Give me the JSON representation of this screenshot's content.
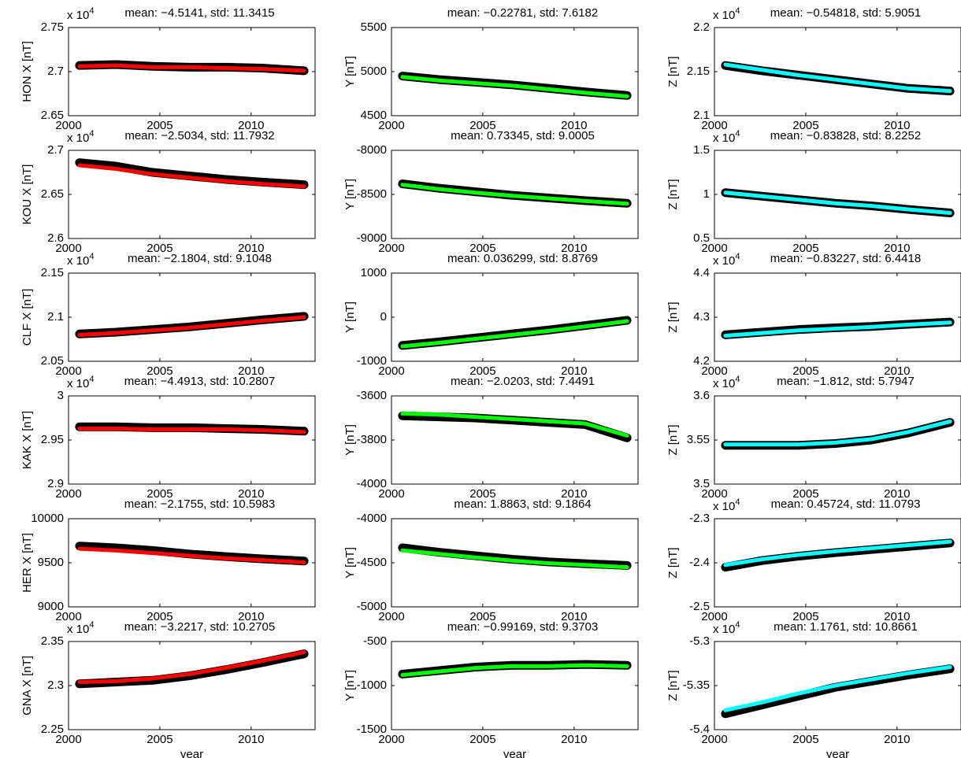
{
  "chart_data": [
    {
      "type": "line",
      "title": "mean: −4.5141, std: 11.3415",
      "ymult": {
        "base": "x 10",
        "exp": "4"
      },
      "ylabel": "HON X [nT]",
      "xlim": [
        2000,
        2013.5
      ],
      "xticks": [
        2000,
        2005,
        2010
      ],
      "ylim": [
        2.65,
        2.75
      ],
      "yticks": [
        2.65,
        2.7,
        2.75
      ],
      "x": [
        2000.6,
        2002.6,
        2004.6,
        2006.6,
        2008.6,
        2010.6,
        2012.9
      ],
      "series": [
        {
          "color": "#000000",
          "values": [
            2.707,
            2.708,
            2.706,
            2.705,
            2.705,
            2.704,
            2.701
          ]
        },
        {
          "color": "#ff0000",
          "values": [
            2.706,
            2.707,
            2.705,
            2.705,
            2.704,
            2.703,
            2.701
          ]
        }
      ]
    },
    {
      "type": "line",
      "title": "mean: −0.22781, std: 7.6182",
      "ylabel": "Y [nT]",
      "xlim": [
        2000,
        2013.5
      ],
      "xticks": [
        2000,
        2005,
        2010
      ],
      "ylim": [
        4500,
        5500
      ],
      "yticks": [
        4500,
        5000,
        5500
      ],
      "x": [
        2000.6,
        2002.6,
        2004.6,
        2006.6,
        2008.6,
        2010.6,
        2012.9
      ],
      "series": [
        {
          "color": "#000000",
          "values": [
            4950,
            4910,
            4880,
            4850,
            4810,
            4770,
            4730
          ]
        },
        {
          "color": "#00ff00",
          "values": [
            4940,
            4900,
            4870,
            4840,
            4800,
            4760,
            4720
          ]
        }
      ]
    },
    {
      "type": "line",
      "title": "mean: −0.54818, std: 5.9051",
      "ymult": {
        "base": "x 10",
        "exp": "4"
      },
      "ylabel": "Z [nT]",
      "xlim": [
        2000,
        2013.5
      ],
      "xticks": [
        2000,
        2005,
        2010
      ],
      "ylim": [
        2.1,
        2.2
      ],
      "yticks": [
        2.1,
        2.15,
        2.2
      ],
      "x": [
        2000.6,
        2002.6,
        2004.6,
        2006.6,
        2008.6,
        2010.6,
        2012.9
      ],
      "series": [
        {
          "color": "#000000",
          "values": [
            2.157,
            2.151,
            2.146,
            2.141,
            2.136,
            2.131,
            2.128
          ]
        },
        {
          "color": "#00ffff",
          "values": [
            2.158,
            2.152,
            2.146,
            2.141,
            2.136,
            2.131,
            2.128
          ]
        }
      ]
    },
    {
      "type": "line",
      "title": "mean: −2.5034, std: 11.7932",
      "ymult": {
        "base": "x 10",
        "exp": "4"
      },
      "ylabel": "KOU X [nT]",
      "xlim": [
        2000,
        2013.5
      ],
      "xticks": [
        2000,
        2005,
        2010
      ],
      "ylim": [
        2.6,
        2.7
      ],
      "yticks": [
        2.6,
        2.65,
        2.7
      ],
      "x": [
        2000.6,
        2002.6,
        2004.6,
        2006.6,
        2008.6,
        2010.6,
        2012.9
      ],
      "series": [
        {
          "color": "#000000",
          "values": [
            2.686,
            2.682,
            2.675,
            2.671,
            2.667,
            2.664,
            2.661
          ]
        },
        {
          "color": "#ff0000",
          "values": [
            2.683,
            2.679,
            2.673,
            2.669,
            2.665,
            2.662,
            2.659
          ]
        }
      ]
    },
    {
      "type": "line",
      "title": "mean: 0.73345, std: 9.0005",
      "ylabel": "Y [nT]",
      "xlim": [
        2000,
        2013.5
      ],
      "xticks": [
        2000,
        2005,
        2010
      ],
      "ylim": [
        -9000,
        -8000
      ],
      "yticks": [
        -9000,
        -8500,
        -8000
      ],
      "x": [
        2000.6,
        2002.6,
        2004.6,
        2006.6,
        2008.6,
        2010.6,
        2012.9
      ],
      "series": [
        {
          "color": "#000000",
          "values": [
            -8380,
            -8430,
            -8470,
            -8510,
            -8540,
            -8570,
            -8600
          ]
        },
        {
          "color": "#00ff00",
          "values": [
            -8390,
            -8440,
            -8480,
            -8515,
            -8545,
            -8575,
            -8605
          ]
        }
      ]
    },
    {
      "type": "line",
      "title": "mean: −0.83828, std: 8.2252",
      "ymult": {
        "base": "x 10",
        "exp": "4"
      },
      "ylabel": "Z [nT]",
      "xlim": [
        2000,
        2013.5
      ],
      "xticks": [
        2000,
        2005,
        2010
      ],
      "ylim": [
        0.5,
        1.5
      ],
      "yticks": [
        0.5,
        1,
        1.5
      ],
      "x": [
        2000.6,
        2002.6,
        2004.6,
        2006.6,
        2008.6,
        2010.6,
        2012.9
      ],
      "series": [
        {
          "color": "#000000",
          "values": [
            1.02,
            0.98,
            0.94,
            0.9,
            0.87,
            0.83,
            0.79
          ]
        },
        {
          "color": "#00ffff",
          "values": [
            1.02,
            0.98,
            0.94,
            0.9,
            0.87,
            0.83,
            0.79
          ]
        }
      ]
    },
    {
      "type": "line",
      "title": "mean: −2.1804, std: 9.1048",
      "ymult": {
        "base": "x 10",
        "exp": "4"
      },
      "ylabel": "CLF X [nT]",
      "xlim": [
        2000,
        2013.5
      ],
      "xticks": [
        2000,
        2005,
        2010
      ],
      "ylim": [
        2.05,
        2.15
      ],
      "yticks": [
        2.05,
        2.1,
        2.15
      ],
      "x": [
        2000.6,
        2002.6,
        2004.6,
        2006.6,
        2008.6,
        2010.6,
        2012.9
      ],
      "series": [
        {
          "color": "#000000",
          "values": [
            2.081,
            2.083,
            2.086,
            2.089,
            2.093,
            2.097,
            2.101
          ]
        },
        {
          "color": "#ff0000",
          "values": [
            2.08,
            2.082,
            2.085,
            2.088,
            2.092,
            2.096,
            2.1
          ]
        }
      ]
    },
    {
      "type": "line",
      "title": "mean: 0.036299, std: 8.8769",
      "ylabel": "Y [nT]",
      "xlim": [
        2000,
        2013.5
      ],
      "xticks": [
        2000,
        2005,
        2010
      ],
      "ylim": [
        -1000,
        1000
      ],
      "yticks": [
        -1000,
        0,
        1000
      ],
      "x": [
        2000.6,
        2002.6,
        2004.6,
        2006.6,
        2008.6,
        2010.6,
        2012.9
      ],
      "series": [
        {
          "color": "#000000",
          "values": [
            -640,
            -560,
            -470,
            -380,
            -290,
            -190,
            -70
          ]
        },
        {
          "color": "#00ff00",
          "values": [
            -660,
            -580,
            -490,
            -400,
            -310,
            -210,
            -90
          ]
        }
      ]
    },
    {
      "type": "line",
      "title": "mean: −0.83227, std: 6.4418",
      "ymult": {
        "base": "x 10",
        "exp": "4"
      },
      "ylabel": "Z [nT]",
      "xlim": [
        2000,
        2013.5
      ],
      "xticks": [
        2000,
        2005,
        2010
      ],
      "ylim": [
        4.2,
        4.4
      ],
      "yticks": [
        4.2,
        4.3,
        4.4
      ],
      "x": [
        2000.6,
        2002.6,
        2004.6,
        2006.6,
        2008.6,
        2010.6,
        2012.9
      ],
      "series": [
        {
          "color": "#000000",
          "values": [
            4.26,
            4.266,
            4.272,
            4.276,
            4.279,
            4.284,
            4.289
          ]
        },
        {
          "color": "#00ffff",
          "values": [
            4.258,
            4.264,
            4.27,
            4.274,
            4.278,
            4.283,
            4.288
          ]
        }
      ]
    },
    {
      "type": "line",
      "title": "mean: −4.4913, std: 10.2807",
      "ymult": {
        "base": "x 10",
        "exp": "4"
      },
      "ylabel": "KAK X [nT]",
      "xlim": [
        2000,
        2013.5
      ],
      "xticks": [
        2000,
        2005,
        2010
      ],
      "ylim": [
        2.9,
        3
      ],
      "yticks": [
        2.9,
        2.95,
        3
      ],
      "x": [
        2000.6,
        2002.6,
        2004.6,
        2006.6,
        2008.6,
        2010.6,
        2012.9
      ],
      "series": [
        {
          "color": "#000000",
          "values": [
            2.965,
            2.965,
            2.964,
            2.964,
            2.963,
            2.962,
            2.96
          ]
        },
        {
          "color": "#ff0000",
          "values": [
            2.963,
            2.963,
            2.962,
            2.962,
            2.962,
            2.961,
            2.959
          ]
        }
      ]
    },
    {
      "type": "line",
      "title": "mean: −2.0203, std: 7.4491",
      "ylabel": "Y [nT]",
      "xlim": [
        2000,
        2013.5
      ],
      "xticks": [
        2000,
        2005,
        2010
      ],
      "ylim": [
        -4000,
        -3600
      ],
      "yticks": [
        -4000,
        -3800,
        -3600
      ],
      "x": [
        2000.6,
        2002.6,
        2004.6,
        2006.6,
        2008.6,
        2010.6,
        2012.9
      ],
      "series": [
        {
          "color": "#000000",
          "values": [
            -3690,
            -3695,
            -3700,
            -3710,
            -3720,
            -3730,
            -3790
          ]
        },
        {
          "color": "#00ff00",
          "values": [
            -3680,
            -3685,
            -3695,
            -3705,
            -3715,
            -3725,
            -3780
          ]
        }
      ]
    },
    {
      "type": "line",
      "title": "mean: −1.812, std: 5.7947",
      "ymult": {
        "base": "x 10",
        "exp": "4"
      },
      "ylabel": "Z [nT]",
      "xlim": [
        2000,
        2013.5
      ],
      "xticks": [
        2000,
        2005,
        2010
      ],
      "ylim": [
        3.5,
        3.6
      ],
      "yticks": [
        3.5,
        3.55,
        3.6
      ],
      "x": [
        2000.6,
        2002.6,
        2004.6,
        2006.6,
        2008.6,
        2010.6,
        2012.9
      ],
      "series": [
        {
          "color": "#000000",
          "values": [
            3.544,
            3.544,
            3.544,
            3.546,
            3.55,
            3.558,
            3.57
          ]
        },
        {
          "color": "#00ffff",
          "values": [
            3.545,
            3.545,
            3.545,
            3.547,
            3.551,
            3.559,
            3.571
          ]
        }
      ]
    },
    {
      "type": "line",
      "title": "mean: −2.1755, std: 10.5983",
      "ylabel": "HER X [nT]",
      "xlim": [
        2000,
        2013.5
      ],
      "xticks": [
        2000,
        2005,
        2010
      ],
      "ylim": [
        9000,
        10000
      ],
      "yticks": [
        9000,
        9500,
        10000
      ],
      "x": [
        2000.6,
        2002.6,
        2004.6,
        2006.6,
        2008.6,
        2010.6,
        2012.9
      ],
      "series": [
        {
          "color": "#000000",
          "values": [
            9690,
            9670,
            9640,
            9600,
            9570,
            9545,
            9520
          ]
        },
        {
          "color": "#ff0000",
          "values": [
            9660,
            9640,
            9610,
            9580,
            9550,
            9530,
            9505
          ]
        }
      ]
    },
    {
      "type": "line",
      "title": "mean: 1.8863, std: 9.1864",
      "ylabel": "Y [nT]",
      "xlim": [
        2000,
        2013.5
      ],
      "xticks": [
        2000,
        2005,
        2010
      ],
      "ylim": [
        -5000,
        -4000
      ],
      "yticks": [
        -5000,
        -4500,
        -4000
      ],
      "x": [
        2000.6,
        2002.6,
        2004.6,
        2006.6,
        2008.6,
        2010.6,
        2012.9
      ],
      "series": [
        {
          "color": "#000000",
          "values": [
            -4330,
            -4380,
            -4420,
            -4460,
            -4490,
            -4510,
            -4530
          ]
        },
        {
          "color": "#00ff00",
          "values": [
            -4360,
            -4400,
            -4440,
            -4475,
            -4505,
            -4525,
            -4550
          ]
        }
      ]
    },
    {
      "type": "line",
      "title": "mean: 0.45724, std: 11.0793",
      "ymult": {
        "base": "x 10",
        "exp": "4"
      },
      "ylabel": "Z [nT]",
      "xlim": [
        2000,
        2013.5
      ],
      "xticks": [
        2000,
        2005,
        2010
      ],
      "ylim": [
        -2.5,
        -2.3
      ],
      "yticks": [
        -2.5,
        -2.4,
        -2.3
      ],
      "x": [
        2000.6,
        2002.6,
        2004.6,
        2006.6,
        2008.6,
        2010.6,
        2012.9
      ],
      "series": [
        {
          "color": "#000000",
          "values": [
            -2.41,
            -2.395,
            -2.385,
            -2.377,
            -2.37,
            -2.363,
            -2.355
          ]
        },
        {
          "color": "#00ffff",
          "values": [
            -2.405,
            -2.392,
            -2.382,
            -2.374,
            -2.367,
            -2.36,
            -2.352
          ]
        }
      ]
    },
    {
      "type": "line",
      "title": "mean: −3.2217, std: 10.2705",
      "ymult": {
        "base": "x 10",
        "exp": "4"
      },
      "ylabel": "GNA X [nT]",
      "xlabel": "year",
      "xlim": [
        2000,
        2013.5
      ],
      "xticks": [
        2000,
        2005,
        2010
      ],
      "ylim": [
        2.25,
        2.35
      ],
      "yticks": [
        2.25,
        2.3,
        2.35
      ],
      "x": [
        2000.6,
        2002.6,
        2004.6,
        2006.6,
        2008.6,
        2010.6,
        2012.9
      ],
      "series": [
        {
          "color": "#000000",
          "values": [
            2.302,
            2.304,
            2.306,
            2.311,
            2.318,
            2.326,
            2.336
          ]
        },
        {
          "color": "#ff0000",
          "values": [
            2.304,
            2.305,
            2.308,
            2.313,
            2.32,
            2.328,
            2.338
          ]
        }
      ]
    },
    {
      "type": "line",
      "title": "mean: −0.99169, std: 9.3703",
      "ylabel": "Y [nT]",
      "xlabel": "year",
      "xlim": [
        2000,
        2013.5
      ],
      "xticks": [
        2000,
        2005,
        2010
      ],
      "ylim": [
        -1500,
        -500
      ],
      "yticks": [
        -1500,
        -1000,
        -500
      ],
      "x": [
        2000.6,
        2002.6,
        2004.6,
        2006.6,
        2008.6,
        2010.6,
        2012.9
      ],
      "series": [
        {
          "color": "#000000",
          "values": [
            -870,
            -830,
            -790,
            -770,
            -770,
            -760,
            -770
          ]
        },
        {
          "color": "#00ff00",
          "values": [
            -880,
            -840,
            -800,
            -780,
            -780,
            -770,
            -780
          ]
        }
      ]
    },
    {
      "type": "line",
      "title": "mean: 1.1761, std: 10.8661",
      "ymult": {
        "base": "x 10",
        "exp": "4"
      },
      "ylabel": "Z [nT]",
      "xlabel": "year",
      "xlim": [
        2000,
        2013.5
      ],
      "xticks": [
        2000,
        2005,
        2010
      ],
      "ylim": [
        -5.4,
        -5.3
      ],
      "yticks": [
        -5.4,
        -5.35,
        -5.3
      ],
      "x": [
        2000.6,
        2002.6,
        2004.6,
        2006.6,
        2008.6,
        2010.6,
        2012.9
      ],
      "series": [
        {
          "color": "#000000",
          "values": [
            -5.382,
            -5.372,
            -5.362,
            -5.352,
            -5.345,
            -5.338,
            -5.331
          ]
        },
        {
          "color": "#00ffff",
          "values": [
            -5.378,
            -5.369,
            -5.359,
            -5.35,
            -5.343,
            -5.336,
            -5.329
          ]
        }
      ]
    }
  ]
}
